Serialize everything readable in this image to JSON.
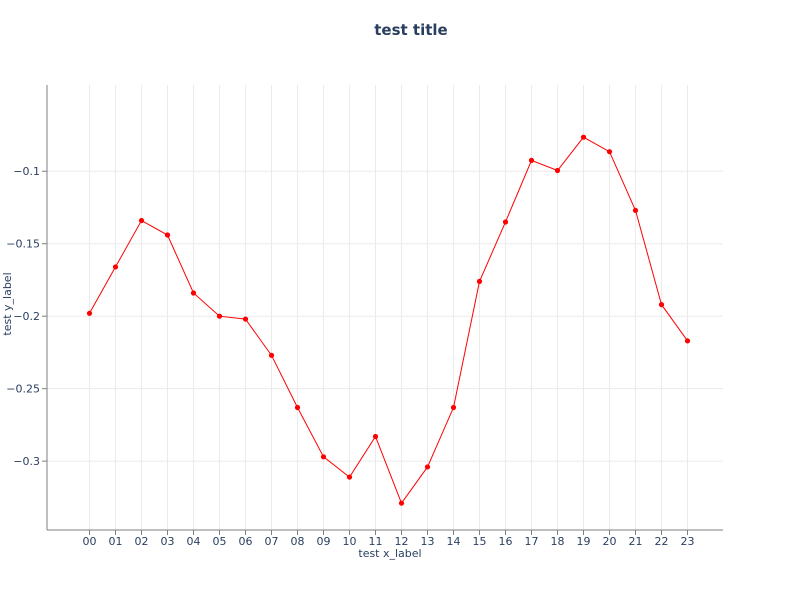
{
  "chart_data": {
    "type": "line",
    "title": "test title",
    "xlabel": "test x_label",
    "ylabel": "test y_label",
    "categories": [
      "00",
      "01",
      "02",
      "03",
      "04",
      "05",
      "06",
      "07",
      "08",
      "09",
      "10",
      "11",
      "12",
      "13",
      "14",
      "15",
      "16",
      "17",
      "18",
      "19",
      "20",
      "21",
      "22",
      "23"
    ],
    "ylim": [
      -0.3475,
      -0.0405
    ],
    "yticks": [
      -0.3,
      -0.25,
      -0.2,
      -0.15,
      -0.1
    ],
    "ytick_labels": [
      "−0.3",
      "−0.25",
      "−0.2",
      "−0.15",
      "−0.1"
    ],
    "grid": true,
    "legend": false,
    "series": [
      {
        "values": [
          -0.198,
          -0.166,
          -0.134,
          -0.144,
          -0.184,
          -0.2,
          -0.202,
          -0.227,
          -0.263,
          -0.297,
          -0.311,
          -0.283,
          -0.329,
          -0.304,
          -0.263,
          -0.176,
          -0.135,
          -0.0925,
          -0.0995,
          -0.0765,
          -0.0865,
          -0.127,
          -0.192,
          -0.217
        ],
        "color": "#ff0000"
      }
    ]
  }
}
